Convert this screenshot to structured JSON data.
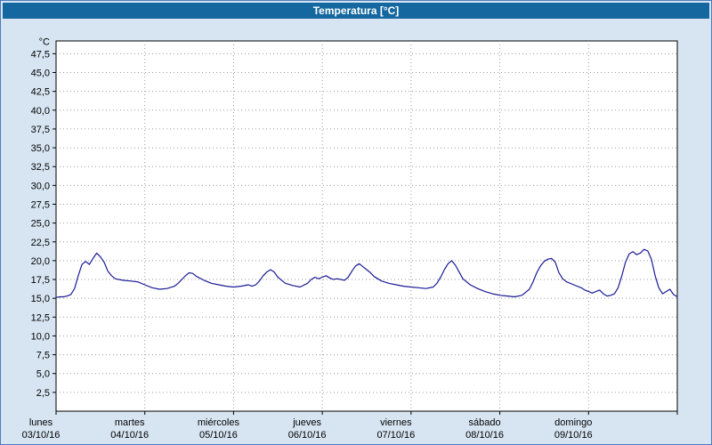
{
  "window": {
    "title": "Temperatura [°C]"
  },
  "colors": {
    "titlebar_bg": "#15689f",
    "titlebar_text": "#ffffff",
    "window_bg": "#d7e5f2",
    "plot_bg": "#ffffff",
    "grid": "#9a9a9a",
    "axis": "#000000",
    "line": "#1a1a96"
  },
  "chart_data": {
    "type": "line",
    "title": "Temperatura [°C]",
    "xlabel": "",
    "ylabel": "°C",
    "ylim": [
      0,
      49.2
    ],
    "xlim_hours": [
      0,
      168
    ],
    "grid": true,
    "legend": false,
    "ytick_values": [
      2.5,
      5,
      7.5,
      10,
      12.5,
      15,
      17.5,
      20,
      22.5,
      25,
      27.5,
      30,
      32.5,
      35,
      37.5,
      40,
      42.5,
      45,
      47.5
    ],
    "ytick_labels": [
      "2,5",
      "5,0",
      "7,5",
      "10,0",
      "12,5",
      "15,0",
      "17,5",
      "20,0",
      "22,5",
      "25,0",
      "27,5",
      "30,0",
      "32,5",
      "35,0",
      "37,5",
      "40,0",
      "42,5",
      "45,0",
      "47,5"
    ],
    "days": [
      {
        "name": "lunes",
        "date": "03/10/16"
      },
      {
        "name": "martes",
        "date": "04/10/16"
      },
      {
        "name": "miércoles",
        "date": "05/10/16"
      },
      {
        "name": "jueves",
        "date": "06/10/16"
      },
      {
        "name": "viernes",
        "date": "07/10/16"
      },
      {
        "name": "sábado",
        "date": "08/10/16"
      },
      {
        "name": "domingo",
        "date": "09/10/16"
      }
    ],
    "series": [
      {
        "name": "Temperatura",
        "color": "#1a1a96",
        "x_hours": [
          0,
          1,
          2,
          3,
          4,
          5,
          6,
          7,
          8,
          9,
          10,
          11,
          12,
          13,
          14,
          15,
          16,
          18,
          20,
          22,
          24,
          26,
          28,
          30,
          32,
          33,
          34,
          35,
          36,
          37,
          38,
          40,
          42,
          44,
          46,
          48,
          50,
          52,
          53,
          54,
          55,
          56,
          57,
          58,
          59,
          60,
          62,
          64,
          66,
          68,
          69,
          70,
          71,
          72,
          73,
          74,
          75,
          76,
          78,
          79,
          80,
          81,
          82,
          83,
          84,
          85,
          86,
          88,
          90,
          92,
          94,
          96,
          98,
          100,
          102,
          103,
          104,
          105,
          106,
          107,
          108,
          109,
          110,
          112,
          114,
          116,
          118,
          119,
          120,
          122,
          124,
          126,
          128,
          129,
          130,
          131,
          132,
          133,
          134,
          135,
          136,
          137,
          138,
          140,
          142,
          143,
          144,
          145,
          146,
          147,
          148,
          149,
          150,
          151,
          152,
          153,
          154,
          155,
          156,
          157,
          158,
          159,
          160,
          161,
          162,
          163,
          164,
          165,
          166,
          167,
          168
        ],
        "y_celsius": [
          15.1,
          15.2,
          15.2,
          15.3,
          15.5,
          16.3,
          18.0,
          19.5,
          19.9,
          19.5,
          20.3,
          21.0,
          20.5,
          19.8,
          18.6,
          18.0,
          17.6,
          17.4,
          17.3,
          17.2,
          16.8,
          16.4,
          16.2,
          16.3,
          16.6,
          17.0,
          17.5,
          18.0,
          18.4,
          18.3,
          17.9,
          17.4,
          17.0,
          16.8,
          16.6,
          16.5,
          16.6,
          16.8,
          16.6,
          16.8,
          17.3,
          18.0,
          18.5,
          18.8,
          18.5,
          17.8,
          17.0,
          16.7,
          16.5,
          17.0,
          17.5,
          17.8,
          17.6,
          17.8,
          18.0,
          17.7,
          17.5,
          17.6,
          17.4,
          17.8,
          18.6,
          19.3,
          19.6,
          19.2,
          18.8,
          18.4,
          17.9,
          17.3,
          17.0,
          16.8,
          16.6,
          16.5,
          16.4,
          16.3,
          16.5,
          17.0,
          17.8,
          18.8,
          19.6,
          20.0,
          19.4,
          18.5,
          17.6,
          16.8,
          16.3,
          15.9,
          15.6,
          15.5,
          15.4,
          15.3,
          15.2,
          15.4,
          16.2,
          17.2,
          18.4,
          19.3,
          19.9,
          20.2,
          20.3,
          19.8,
          18.4,
          17.6,
          17.2,
          16.8,
          16.4,
          16.1,
          15.9,
          15.7,
          15.9,
          16.1,
          15.6,
          15.3,
          15.4,
          15.6,
          16.4,
          18.0,
          19.8,
          20.9,
          21.2,
          20.8,
          21.0,
          21.5,
          21.3,
          20.2,
          18.0,
          16.4,
          15.6,
          15.9,
          16.2,
          15.5,
          15.2
        ]
      }
    ]
  }
}
